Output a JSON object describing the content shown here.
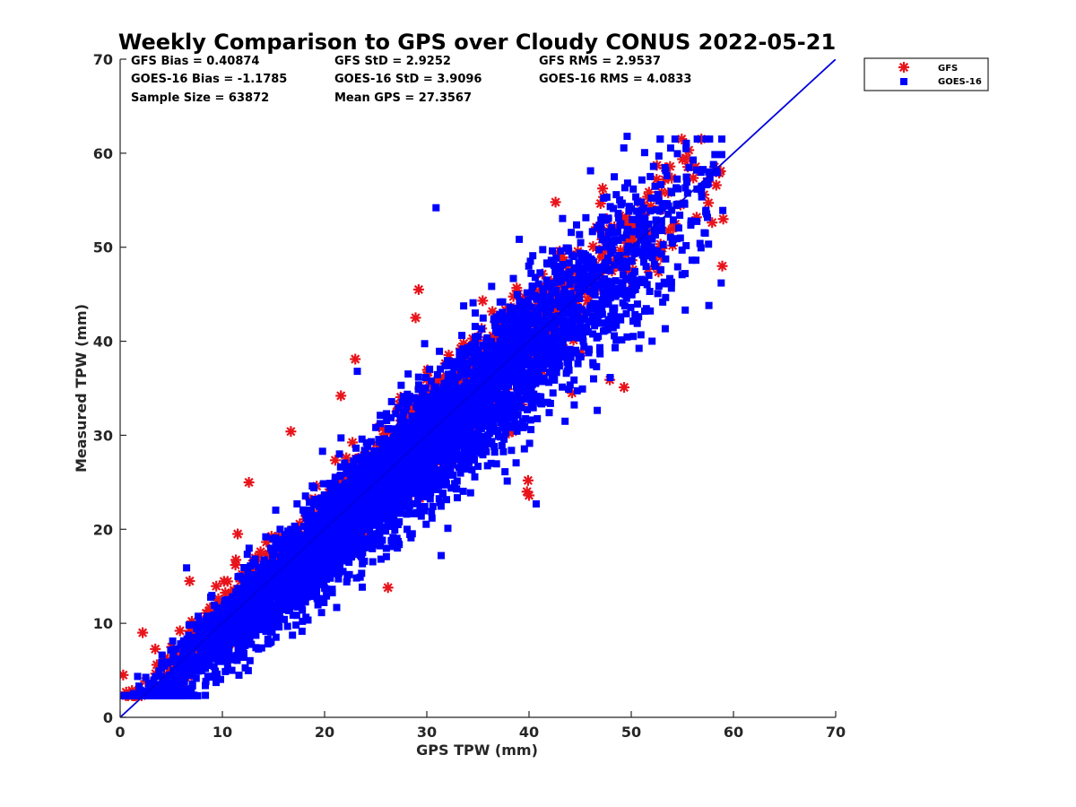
{
  "chart_data": {
    "type": "scatter",
    "title": "Weekly Comparison to GPS over Cloudy CONUS 2022-05-21",
    "xlabel": "GPS TPW (mm)",
    "ylabel": "Measured TPW (mm)",
    "xlim": [
      0,
      70
    ],
    "ylim": [
      0,
      70
    ],
    "xticks": [
      0,
      10,
      20,
      30,
      40,
      50,
      60,
      70
    ],
    "yticks": [
      0,
      10,
      20,
      30,
      40,
      50,
      60,
      70
    ],
    "grid": false,
    "legend_position": "outside-top-right",
    "stats": [
      {
        "text": "GFS Bias = 0.40874"
      },
      {
        "text": "GFS StD = 2.9252"
      },
      {
        "text": "GFS RMS = 2.9537"
      },
      {
        "text": "GOES-16 Bias = -1.1785"
      },
      {
        "text": "GOES-16 StD = 3.9096"
      },
      {
        "text": "GOES-16 RMS = 4.0833"
      },
      {
        "text": "Sample Size = 63872"
      },
      {
        "text": "Mean GPS = 27.3567"
      }
    ],
    "reference_line": {
      "x": [
        0,
        70
      ],
      "y": [
        0,
        70
      ],
      "color": "#0000dd"
    },
    "series": [
      {
        "name": "GFS",
        "marker": "asterisk",
        "color": "#e8141b",
        "n_points": 63872,
        "bias": 0.40874,
        "std": 2.9252,
        "outliers": [
          [
            12.6,
            25.0
          ],
          [
            16.7,
            30.4
          ],
          [
            21.6,
            34.2
          ],
          [
            23.0,
            38.1
          ],
          [
            26.2,
            13.8
          ],
          [
            29.2,
            45.5
          ],
          [
            28.9,
            42.5
          ],
          [
            42.6,
            54.8
          ],
          [
            47.9,
            35.9
          ],
          [
            49.3,
            35.1
          ],
          [
            39.8,
            24.0
          ],
          [
            39.9,
            25.2
          ],
          [
            40.0,
            23.6
          ],
          [
            59.0,
            53.0
          ],
          [
            58.9,
            48.0
          ],
          [
            44.2,
            34.5
          ],
          [
            11.5,
            19.5
          ],
          [
            6.8,
            14.5
          ],
          [
            2.2,
            9.0
          ],
          [
            0.3,
            4.5
          ]
        ]
      },
      {
        "name": "GOES-16",
        "marker": "square",
        "color": "#0000ff",
        "n_points": 63872,
        "bias": -1.1785,
        "std": 3.9096,
        "outliers": [
          [
            49.6,
            61.8
          ],
          [
            30.9,
            54.2
          ],
          [
            52.7,
            59.7
          ],
          [
            56.4,
            58.2
          ],
          [
            40.7,
            22.7
          ],
          [
            31.4,
            17.2
          ],
          [
            58.8,
            46.2
          ],
          [
            57.6,
            43.8
          ],
          [
            23.2,
            36.8
          ],
          [
            6.5,
            15.9
          ]
        ]
      }
    ]
  }
}
